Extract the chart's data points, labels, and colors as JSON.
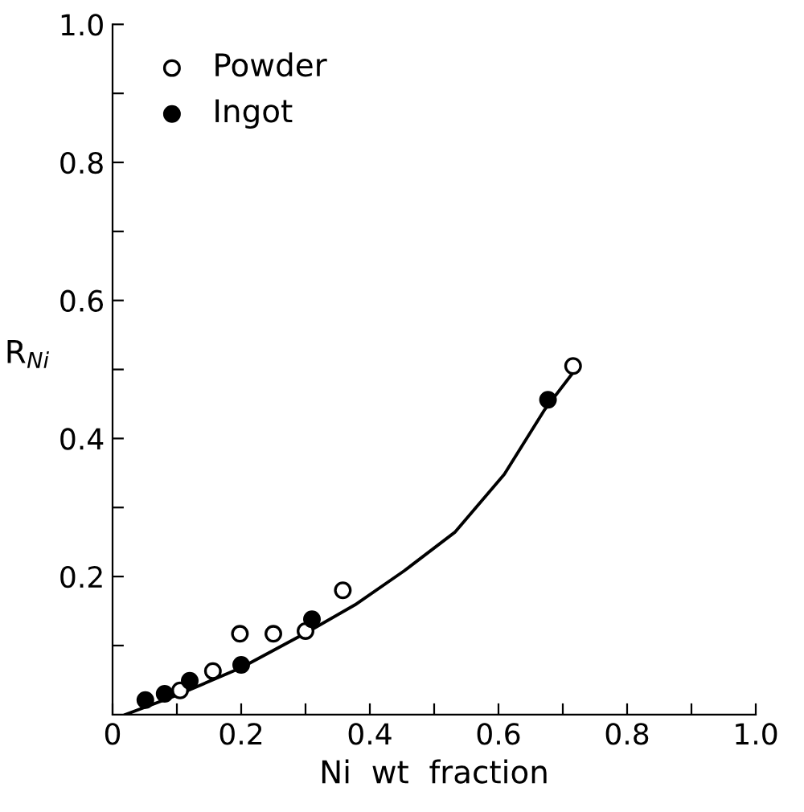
{
  "chart_data": {
    "type": "scatter",
    "xlabel": "Ni  wt  fraction",
    "ylabel": "R$_{Ni}$",
    "xlim": [
      0,
      1
    ],
    "ylim": [
      0,
      1
    ],
    "xticks": [
      0,
      {
        "value": 0.1,
        "label": null
      },
      0.2,
      {
        "value": 0.3,
        "label": null
      },
      0.4,
      {
        "value": 0.5,
        "label": null
      },
      0.6,
      {
        "value": 0.7,
        "label": null
      },
      0.8,
      {
        "value": 0.9,
        "label": null
      },
      {
        "value": 1,
        "label": "1.0"
      }
    ],
    "yticks": [
      {
        "value": 0.1,
        "label": null
      },
      0.2,
      {
        "value": 0.3,
        "label": null
      },
      0.4,
      {
        "value": 0.5,
        "label": null
      },
      0.6,
      {
        "value": 0.7,
        "label": null
      },
      0.8,
      {
        "value": 0.9,
        "label": null
      },
      {
        "value": 1,
        "label": "1.0"
      }
    ],
    "legend": "top left",
    "grid": false,
    "marker": "circle",
    "series": [
      {
        "name": "Powder",
        "color": "#ffffff",
        "x": [
          0.105,
          0.156,
          0.198,
          0.25,
          0.3,
          0.358,
          0.716
        ],
        "values": [
          0.035,
          0.063,
          0.117,
          0.117,
          0.121,
          0.18,
          0.505
        ]
      },
      {
        "name": "Ingot",
        "color": "#000000",
        "x": [
          0.051,
          0.081,
          0.12,
          0.2,
          0.31,
          0.677
        ],
        "values": [
          0.021,
          0.03,
          0.049,
          0.072,
          0.138,
          0.456
        ]
      },
      {
        "type": "line",
        "color": "#000000",
        "marker": "none",
        "x": [
          0.02,
          0.1,
          0.2,
          0.3,
          0.377,
          0.453,
          0.532,
          0.609,
          0.672,
          0.718
        ],
        "values": [
          0.0,
          0.028,
          0.068,
          0.118,
          0.159,
          0.208,
          0.264,
          0.348,
          0.442,
          0.498
        ]
      }
    ]
  }
}
